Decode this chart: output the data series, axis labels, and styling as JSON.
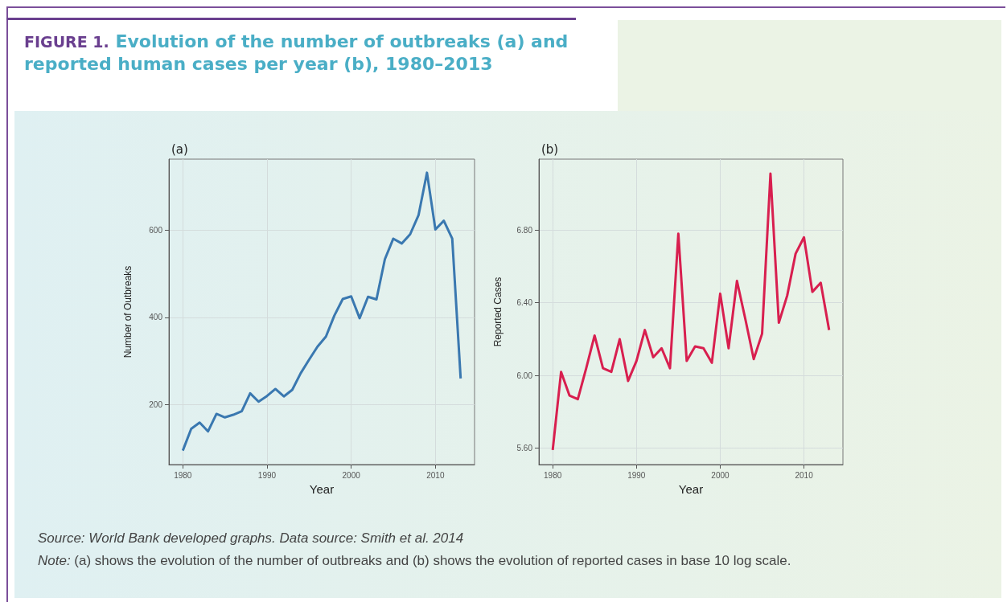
{
  "chart_data": [
    {
      "type": "line",
      "title": "FIGURE 1. Evolution of the number of outbreaks (a) and reported human cases per year (b), 1980–2013",
      "subtitle": "(a)",
      "xlabel": "Year",
      "ylabel": "Number of Outbreaks",
      "grid": true,
      "x": [
        1980,
        1981,
        1982,
        1983,
        1984,
        1985,
        1986,
        1987,
        1988,
        1989,
        1990,
        1991,
        1992,
        1993,
        1994,
        1995,
        1996,
        1997,
        1998,
        1999,
        2000,
        2001,
        2002,
        2003,
        2004,
        2005,
        2006,
        2007,
        2008,
        2009,
        2010,
        2011,
        2012,
        2013
      ],
      "series": [
        {
          "color": "#3a78b0",
          "values": [
            95,
            145,
            159,
            139,
            179,
            171,
            177,
            185,
            226,
            207,
            220,
            236,
            219,
            234,
            272,
            303,
            333,
            356,
            404,
            442,
            448,
            398,
            447,
            441,
            533,
            580,
            569,
            590,
            634,
            731,
            601,
            621,
            580,
            260
          ]
        }
      ],
      "xlim": [
        1978.35,
        2014.65
      ],
      "xticks": [
        1980,
        1990,
        2000,
        2010
      ],
      "ylim": [
        63,
        762
      ],
      "yticks": [
        200,
        400,
        600
      ]
    },
    {
      "type": "line",
      "subtitle": "(b)",
      "xlabel": "Year",
      "ylabel": "Reported Cases",
      "grid": true,
      "x": [
        1980,
        1981,
        1982,
        1983,
        1984,
        1985,
        1986,
        1987,
        1988,
        1989,
        1990,
        1991,
        1992,
        1993,
        1994,
        1995,
        1996,
        1997,
        1998,
        1999,
        2000,
        2001,
        2002,
        2003,
        2004,
        2005,
        2006,
        2007,
        2008,
        2009,
        2010,
        2011,
        2012,
        2013
      ],
      "series": [
        {
          "color": "#d81f4f",
          "values": [
            5.59,
            6.02,
            5.89,
            5.87,
            6.04,
            6.22,
            6.04,
            6.02,
            6.2,
            5.97,
            6.08,
            6.25,
            6.1,
            6.15,
            6.04,
            6.78,
            6.08,
            6.16,
            6.15,
            6.07,
            6.45,
            6.15,
            6.52,
            6.31,
            6.09,
            6.23,
            7.11,
            6.29,
            6.44,
            6.67,
            6.76,
            6.46,
            6.51,
            6.25
          ]
        }
      ],
      "xlim": [
        1978.35,
        2014.65
      ],
      "xticks": [
        1980,
        1990,
        2000,
        2010
      ],
      "ylim": [
        5.51,
        7.19
      ],
      "yticks": [
        {
          "value": 5.6,
          "label": "5.60"
        },
        {
          "value": 6.0,
          "label": "6.00"
        },
        {
          "value": 6.4,
          "label": "6.40"
        },
        {
          "value": 6.8,
          "label": "6.80"
        }
      ],
      "annotations": [
        "Source: World Bank developed graphs. Data source: Smith et al. 2014",
        "Note: (a) shows the evolution of the number of outbreaks and (b) shows the evolution of reported cases in base 10 log scale."
      ]
    }
  ]
}
